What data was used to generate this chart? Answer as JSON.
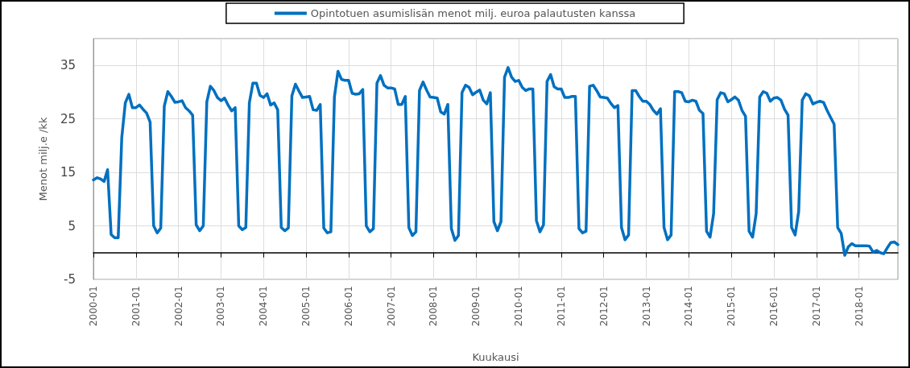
{
  "chart_data": {
    "type": "line",
    "ylabel": "Menot milj.e /kk",
    "xlabel": "Kuukausi",
    "categories": [
      "2000-01",
      null,
      null,
      null,
      null,
      null,
      null,
      null,
      null,
      null,
      null,
      null,
      "2001-01",
      null,
      null,
      null,
      null,
      null,
      null,
      null,
      null,
      null,
      null,
      null,
      "2002-01",
      null,
      null,
      null,
      null,
      null,
      null,
      null,
      null,
      null,
      null,
      null,
      "2003-01",
      null,
      null,
      null,
      null,
      null,
      null,
      null,
      null,
      null,
      null,
      null,
      "2004-01",
      null,
      null,
      null,
      null,
      null,
      null,
      null,
      null,
      null,
      null,
      null,
      "2005-01",
      null,
      null,
      null,
      null,
      null,
      null,
      null,
      null,
      null,
      null,
      null,
      "2006-01",
      null,
      null,
      null,
      null,
      null,
      null,
      null,
      null,
      null,
      null,
      null,
      "2007-01",
      null,
      null,
      null,
      null,
      null,
      null,
      null,
      null,
      null,
      null,
      null,
      "2008-01",
      null,
      null,
      null,
      null,
      null,
      null,
      null,
      null,
      null,
      null,
      null,
      "2009-01",
      null,
      null,
      null,
      null,
      null,
      null,
      null,
      null,
      null,
      null,
      null,
      "2010-01",
      null,
      null,
      null,
      null,
      null,
      null,
      null,
      null,
      null,
      null,
      null,
      "2011-01",
      null,
      null,
      null,
      null,
      null,
      null,
      null,
      null,
      null,
      null,
      null,
      "2012-01",
      null,
      null,
      null,
      null,
      null,
      null,
      null,
      null,
      null,
      null,
      null,
      "2013-01",
      null,
      null,
      null,
      null,
      null,
      null,
      null,
      null,
      null,
      null,
      null,
      "2014-01",
      null,
      null,
      null,
      null,
      null,
      null,
      null,
      null,
      null,
      null,
      null,
      "2015-01",
      null,
      null,
      null,
      null,
      null,
      null,
      null,
      null,
      null,
      null,
      null,
      "2016-01",
      null,
      null,
      null,
      null,
      null,
      null,
      null,
      null,
      null,
      null,
      null,
      "2017-01",
      null,
      null,
      null,
      null,
      null,
      null,
      null,
      null,
      null,
      null,
      null,
      "2018-01",
      null,
      null,
      null,
      null,
      null,
      null,
      null,
      null,
      null,
      null,
      null
    ],
    "series": [
      {
        "name": "Opintotuen asumislisän menot milj. euroa palautusten kanssa",
        "color": "#0070c0",
        "values": [
          13.6,
          14.0,
          13.8,
          13.3,
          15.5,
          3.4,
          2.8,
          2.8,
          21.5,
          28.0,
          29.6,
          27.1,
          27.1,
          27.6,
          26.8,
          26.1,
          24.4,
          5.0,
          3.7,
          4.6,
          27.4,
          30.1,
          29.2,
          28.1,
          28.2,
          28.4,
          27.1,
          26.5,
          25.7,
          5.2,
          4.1,
          5.0,
          28.2,
          31.1,
          30.3,
          29.0,
          28.4,
          28.9,
          27.6,
          26.5,
          27.1,
          5.0,
          4.3,
          4.7,
          28.0,
          31.7,
          31.7,
          29.4,
          29.0,
          29.7,
          27.6,
          28.0,
          26.7,
          4.7,
          4.1,
          4.6,
          29.3,
          31.5,
          30.2,
          29.0,
          29.1,
          29.2,
          26.7,
          26.6,
          27.7,
          4.6,
          3.7,
          3.9,
          29.1,
          33.9,
          32.4,
          32.2,
          32.2,
          29.8,
          29.6,
          29.7,
          30.5,
          5.0,
          3.9,
          4.5,
          31.7,
          33.1,
          31.3,
          30.8,
          30.8,
          30.6,
          27.7,
          27.7,
          29.2,
          4.7,
          3.2,
          3.9,
          30.3,
          31.9,
          30.4,
          29.1,
          29.0,
          28.9,
          26.3,
          25.9,
          27.7,
          4.5,
          2.3,
          3.2,
          29.9,
          31.3,
          30.9,
          29.5,
          30.0,
          30.4,
          28.5,
          27.8,
          29.9,
          5.8,
          4.1,
          5.8,
          32.8,
          34.6,
          32.8,
          32.0,
          32.2,
          30.9,
          30.3,
          30.6,
          30.6,
          6.0,
          3.9,
          5.2,
          32.0,
          33.3,
          31.0,
          30.6,
          30.6,
          29.0,
          29.0,
          29.2,
          29.2,
          4.5,
          3.7,
          4.0,
          31.1,
          31.3,
          30.3,
          29.1,
          29.0,
          28.9,
          27.9,
          27.1,
          27.5,
          4.7,
          2.4,
          3.3,
          30.3,
          30.3,
          29.2,
          28.3,
          28.3,
          27.7,
          26.6,
          25.9,
          26.9,
          4.7,
          2.4,
          3.3,
          30.1,
          30.1,
          29.9,
          28.3,
          28.2,
          28.5,
          28.3,
          26.6,
          26.0,
          4.0,
          2.9,
          7.3,
          28.6,
          29.9,
          29.7,
          28.2,
          28.6,
          29.1,
          28.5,
          26.6,
          25.5,
          4.0,
          2.9,
          7.3,
          29.1,
          30.1,
          29.8,
          28.3,
          28.9,
          29.0,
          28.5,
          26.8,
          25.7,
          4.7,
          3.3,
          7.7,
          28.5,
          29.7,
          29.3,
          27.8,
          28.1,
          28.3,
          28.1,
          26.6,
          25.3,
          24.0,
          4.7,
          3.6,
          -0.5,
          1.1,
          1.7,
          1.3,
          1.3,
          1.3,
          1.3,
          1.2,
          0.1,
          0.4,
          0.0,
          -0.2,
          0.9,
          1.9,
          2.0,
          1.5
        ]
      }
    ],
    "ylim": [
      -5,
      40
    ],
    "yticks": [
      -5,
      5,
      15,
      25,
      35
    ],
    "grid": true,
    "legend": "top",
    "marker": "none",
    "line_style": "solid"
  }
}
